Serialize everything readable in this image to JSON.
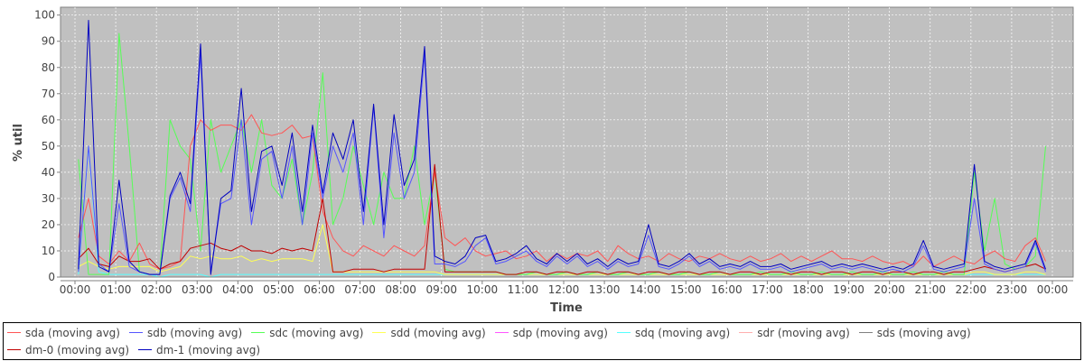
{
  "chart_data": {
    "type": "line",
    "xlabel": "Time",
    "ylabel": "% util",
    "ylim": [
      0,
      103
    ],
    "grid": true,
    "legend_placement": "bottom",
    "x_ticks": [
      "00:00",
      "01:00",
      "02:00",
      "03:00",
      "04:00",
      "05:00",
      "06:00",
      "07:00",
      "08:00",
      "09:00",
      "10:00",
      "11:00",
      "12:00",
      "13:00",
      "14:00",
      "15:00",
      "16:00",
      "17:00",
      "18:00",
      "19:00",
      "20:00",
      "21:00",
      "22:00",
      "23:00",
      "00:00"
    ],
    "y_ticks": [
      0,
      10,
      20,
      30,
      40,
      50,
      60,
      70,
      80,
      90,
      100
    ],
    "x": [
      "00:05",
      "00:20",
      "00:35",
      "00:50",
      "01:05",
      "01:20",
      "01:35",
      "01:50",
      "02:05",
      "02:20",
      "02:35",
      "02:50",
      "03:05",
      "03:20",
      "03:35",
      "03:50",
      "04:05",
      "04:20",
      "04:35",
      "04:50",
      "05:05",
      "05:20",
      "05:35",
      "05:50",
      "06:05",
      "06:20",
      "06:35",
      "06:50",
      "07:05",
      "07:20",
      "07:35",
      "07:50",
      "08:05",
      "08:20",
      "08:35",
      "08:50",
      "09:05",
      "09:20",
      "09:35",
      "09:50",
      "10:05",
      "10:20",
      "10:35",
      "10:50",
      "11:05",
      "11:20",
      "11:35",
      "11:50",
      "12:05",
      "12:20",
      "12:35",
      "12:50",
      "13:05",
      "13:20",
      "13:35",
      "13:50",
      "14:05",
      "14:20",
      "14:35",
      "14:50",
      "15:05",
      "15:20",
      "15:35",
      "15:50",
      "16:05",
      "16:20",
      "16:35",
      "16:50",
      "17:05",
      "17:20",
      "17:35",
      "17:50",
      "18:05",
      "18:20",
      "18:35",
      "18:50",
      "19:05",
      "19:20",
      "19:35",
      "19:50",
      "20:05",
      "20:20",
      "20:35",
      "20:50",
      "21:05",
      "21:20",
      "21:35",
      "21:50",
      "22:05",
      "22:20",
      "22:35",
      "22:50",
      "23:05",
      "23:20",
      "23:35",
      "23:50"
    ],
    "series": [
      {
        "name": "sda (moving avg)",
        "color": "#FF5555",
        "values": [
          15,
          30,
          8,
          5,
          10,
          6,
          13,
          5,
          3,
          4,
          6,
          50,
          60,
          56,
          58,
          58,
          56,
          62,
          55,
          54,
          55,
          58,
          53,
          54,
          25,
          15,
          10,
          8,
          12,
          10,
          8,
          12,
          10,
          8,
          12,
          40,
          15,
          12,
          15,
          10,
          8,
          9,
          10,
          7,
          8,
          10,
          6,
          9,
          7,
          9,
          8,
          10,
          6,
          12,
          9,
          7,
          8,
          6,
          9,
          7,
          6,
          8,
          7,
          9,
          7,
          6,
          8,
          6,
          7,
          9,
          6,
          8,
          6,
          8,
          10,
          7,
          7,
          6,
          8,
          6,
          5,
          6,
          4,
          8,
          4,
          6,
          8,
          6,
          5,
          8,
          10,
          7,
          6,
          12,
          15,
          6
        ]
      },
      {
        "name": "sdb (moving avg)",
        "color": "#5555FF",
        "values": [
          2,
          50,
          5,
          2,
          28,
          4,
          2,
          1,
          1,
          30,
          38,
          25,
          85,
          2,
          28,
          30,
          60,
          20,
          45,
          48,
          30,
          50,
          20,
          55,
          30,
          50,
          40,
          55,
          20,
          65,
          15,
          55,
          30,
          40,
          85,
          5,
          5,
          4,
          6,
          12,
          15,
          5,
          6,
          8,
          10,
          6,
          4,
          8,
          5,
          8,
          4,
          6,
          3,
          6,
          4,
          5,
          16,
          4,
          3,
          5,
          8,
          4,
          6,
          3,
          4,
          3,
          5,
          3,
          3,
          4,
          2,
          3,
          4,
          5,
          3,
          4,
          3,
          4,
          3,
          2,
          3,
          2,
          4,
          12,
          3,
          2,
          3,
          4,
          30,
          5,
          3,
          2,
          3,
          4,
          13,
          2
        ]
      },
      {
        "name": "sdc (moving avg)",
        "color": "#55FF55",
        "values": [
          45,
          1,
          1,
          1,
          93,
          50,
          2,
          1,
          1,
          60,
          50,
          45,
          10,
          60,
          40,
          50,
          60,
          40,
          60,
          35,
          30,
          45,
          20,
          40,
          78,
          20,
          30,
          50,
          35,
          20,
          40,
          30,
          30,
          50,
          20,
          40,
          3,
          2,
          2,
          2,
          2,
          2,
          1,
          1,
          1,
          2,
          1,
          1,
          2,
          1,
          1,
          2,
          1,
          1,
          2,
          1,
          1,
          2,
          1,
          1,
          2,
          1,
          1,
          2,
          1,
          1,
          1,
          2,
          1,
          1,
          2,
          1,
          1,
          2,
          1,
          1,
          2,
          1,
          1,
          2,
          1,
          1,
          2,
          1,
          1,
          2,
          1,
          1,
          40,
          10,
          30,
          5,
          3,
          4,
          8,
          50
        ]
      },
      {
        "name": "sdd (moving avg)",
        "color": "#FFFF55",
        "values": [
          4,
          6,
          4,
          3,
          4,
          4,
          4,
          4,
          2,
          3,
          4,
          8,
          7,
          8,
          7,
          7,
          8,
          6,
          7,
          6,
          7,
          7,
          7,
          6,
          20,
          2,
          2,
          2,
          2,
          2,
          2,
          2,
          2,
          2,
          2,
          2,
          1,
          1,
          1,
          1,
          1,
          1,
          1,
          1,
          1,
          1,
          1,
          1,
          1,
          1,
          1,
          1,
          1,
          1,
          1,
          1,
          1,
          1,
          1,
          1,
          1,
          1,
          1,
          1,
          1,
          1,
          1,
          1,
          1,
          1,
          1,
          1,
          1,
          1,
          1,
          1,
          1,
          1,
          1,
          1,
          1,
          1,
          1,
          1,
          1,
          1,
          1,
          1,
          2,
          2,
          1,
          1,
          1,
          2,
          2,
          1
        ]
      },
      {
        "name": "sdp (moving avg)",
        "color": "#FF55FF",
        "values": [
          0,
          0,
          0,
          0,
          0,
          0,
          0,
          0,
          0,
          0,
          0,
          0,
          0,
          0,
          0,
          0,
          0,
          0,
          0,
          0,
          0,
          0,
          0,
          0,
          0,
          0,
          0,
          0,
          0,
          0,
          0,
          0,
          0,
          0,
          0,
          0,
          0,
          0,
          0,
          0,
          0,
          0,
          0,
          0,
          0,
          0,
          0,
          0,
          0,
          0,
          0,
          0,
          0,
          0,
          0,
          0,
          0,
          0,
          0,
          0,
          0,
          0,
          0,
          0,
          0,
          0,
          0,
          0,
          0,
          0,
          0,
          0,
          0,
          0,
          0,
          0,
          0,
          0,
          0,
          0,
          0,
          0,
          0,
          0,
          0,
          0,
          0,
          0,
          0,
          0,
          0,
          0,
          0,
          0,
          0,
          0
        ]
      },
      {
        "name": "sdq (moving avg)",
        "color": "#55FFFF",
        "values": [
          1,
          50,
          2,
          1,
          1,
          1,
          1,
          1,
          0,
          1,
          1,
          1,
          1,
          0,
          1,
          1,
          1,
          1,
          1,
          1,
          1,
          1,
          1,
          1,
          1,
          1,
          1,
          1,
          1,
          1,
          1,
          1,
          1,
          1,
          1,
          1,
          1,
          1,
          1,
          1,
          1,
          1,
          1,
          1,
          1,
          1,
          1,
          1,
          1,
          1,
          1,
          1,
          1,
          1,
          1,
          1,
          1,
          1,
          1,
          1,
          1,
          1,
          1,
          1,
          1,
          1,
          1,
          1,
          1,
          1,
          1,
          1,
          1,
          1,
          1,
          1,
          1,
          1,
          1,
          1,
          1,
          1,
          1,
          1,
          1,
          1,
          1,
          1,
          1,
          1,
          1,
          1,
          1,
          1,
          1,
          1
        ]
      },
      {
        "name": "sdr (moving avg)",
        "color": "#FFAFAF",
        "values": [
          0,
          0,
          0,
          0,
          0,
          0,
          0,
          0,
          0,
          0,
          0,
          0,
          0,
          0,
          0,
          0,
          0,
          0,
          0,
          0,
          0,
          0,
          0,
          0,
          0,
          0,
          0,
          0,
          0,
          0,
          0,
          0,
          0,
          0,
          0,
          0,
          0,
          0,
          0,
          0,
          0,
          0,
          0,
          0,
          0,
          0,
          0,
          0,
          0,
          0,
          0,
          0,
          0,
          0,
          0,
          0,
          0,
          0,
          0,
          0,
          0,
          0,
          0,
          0,
          0,
          0,
          0,
          0,
          0,
          0,
          0,
          0,
          0,
          0,
          0,
          0,
          0,
          0,
          0,
          0,
          0,
          0,
          0,
          0,
          0,
          0,
          0,
          0,
          0,
          0,
          0,
          0,
          0,
          0,
          0,
          0
        ]
      },
      {
        "name": "sds (moving avg)",
        "color": "#808080",
        "values": [
          0,
          0,
          0,
          0,
          0,
          0,
          0,
          0,
          0,
          0,
          0,
          0,
          0,
          0,
          0,
          0,
          0,
          0,
          0,
          0,
          0,
          0,
          0,
          0,
          0,
          0,
          0,
          0,
          0,
          0,
          0,
          0,
          0,
          0,
          0,
          0,
          0,
          0,
          0,
          0,
          0,
          0,
          0,
          0,
          0,
          0,
          0,
          0,
          0,
          0,
          0,
          0,
          0,
          0,
          0,
          0,
          0,
          0,
          0,
          0,
          0,
          0,
          0,
          0,
          0,
          0,
          0,
          0,
          0,
          0,
          0,
          0,
          0,
          0,
          0,
          0,
          0,
          0,
          0,
          0,
          0,
          0,
          0,
          0,
          0,
          0,
          0,
          0,
          0,
          0,
          0,
          0,
          0,
          0,
          0,
          0
        ]
      },
      {
        "name": "dm-0 (moving avg)",
        "color": "#C00000",
        "values": [
          7,
          11,
          5,
          4,
          8,
          6,
          6,
          7,
          3,
          5,
          6,
          11,
          12,
          13,
          11,
          10,
          12,
          10,
          10,
          9,
          11,
          10,
          11,
          10,
          30,
          2,
          2,
          3,
          3,
          3,
          2,
          3,
          3,
          3,
          3,
          43,
          2,
          2,
          2,
          2,
          2,
          2,
          1,
          1,
          2,
          2,
          1,
          2,
          2,
          1,
          2,
          2,
          1,
          2,
          2,
          1,
          2,
          2,
          1,
          2,
          2,
          1,
          2,
          2,
          1,
          2,
          2,
          1,
          2,
          2,
          1,
          2,
          2,
          1,
          2,
          2,
          1,
          2,
          2,
          1,
          2,
          2,
          1,
          2,
          2,
          1,
          2,
          2,
          3,
          4,
          3,
          2,
          3,
          4,
          5,
          3
        ]
      },
      {
        "name": "dm-1 (moving avg)",
        "color": "#0000C0",
        "values": [
          3,
          98,
          4,
          2,
          37,
          6,
          2,
          1,
          1,
          31,
          40,
          28,
          89,
          1,
          30,
          33,
          72,
          25,
          48,
          50,
          35,
          55,
          25,
          58,
          32,
          55,
          45,
          60,
          25,
          66,
          20,
          62,
          35,
          45,
          88,
          8,
          6,
          5,
          8,
          15,
          16,
          6,
          7,
          9,
          12,
          7,
          5,
          9,
          6,
          9,
          5,
          7,
          4,
          7,
          5,
          6,
          20,
          5,
          4,
          6,
          9,
          5,
          7,
          4,
          5,
          4,
          6,
          4,
          4,
          5,
          3,
          4,
          5,
          6,
          4,
          5,
          4,
          5,
          4,
          3,
          4,
          3,
          5,
          14,
          4,
          3,
          4,
          5,
          43,
          6,
          4,
          3,
          4,
          5,
          14,
          3
        ]
      }
    ]
  }
}
